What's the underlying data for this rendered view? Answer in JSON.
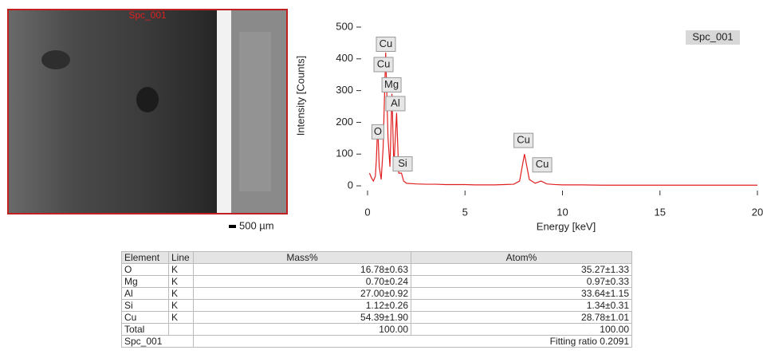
{
  "image": {
    "label": "Spc_001",
    "scale_bar": "500 µm"
  },
  "chart_data": {
    "type": "line",
    "x": [
      0.1,
      0.2,
      0.3,
      0.4,
      0.45,
      0.52,
      0.6,
      0.7,
      0.8,
      0.93,
      1.05,
      1.15,
      1.25,
      1.35,
      1.49,
      1.6,
      1.74,
      1.85,
      2.0,
      2.5,
      3,
      3.5,
      4,
      4.5,
      5,
      5.5,
      6,
      6.5,
      7,
      7.5,
      7.8,
      8.05,
      8.3,
      8.6,
      8.9,
      9.2,
      9.6,
      10,
      11,
      12,
      13,
      14,
      15,
      16,
      17,
      18,
      19,
      20
    ],
    "series": [
      {
        "name": "Spc_001",
        "color": "#e02020",
        "values": [
          40,
          25,
          15,
          30,
          80,
          190,
          60,
          20,
          120,
          420,
          150,
          60,
          290,
          60,
          230,
          40,
          40,
          15,
          8,
          6,
          5,
          5,
          4,
          4,
          4,
          3,
          3,
          3,
          4,
          5,
          15,
          100,
          20,
          8,
          15,
          6,
          4,
          3,
          3,
          2,
          2,
          2,
          2,
          2,
          2,
          2,
          2,
          2
        ]
      }
    ],
    "xlabel": "Energy [keV]",
    "ylabel": "Intensity [Counts]",
    "xlim": [
      0,
      20
    ],
    "ylim": [
      -30,
      510
    ],
    "xticks": [
      0,
      5,
      10,
      15,
      20
    ],
    "yticks": [
      0,
      100,
      200,
      300,
      400,
      500
    ],
    "legend": "upper right",
    "annotations": [
      {
        "text": "Cu",
        "x": 0.94,
        "y": 446
      },
      {
        "text": "Cu",
        "x": 0.82,
        "y": 382
      },
      {
        "text": "Mg",
        "x": 1.23,
        "y": 318
      },
      {
        "text": "Al",
        "x": 1.43,
        "y": 259
      },
      {
        "text": "O",
        "x": 0.53,
        "y": 170
      },
      {
        "text": "Si",
        "x": 1.8,
        "y": 69
      },
      {
        "text": "Cu",
        "x": 8.0,
        "y": 143
      },
      {
        "text": "Cu",
        "x": 8.96,
        "y": 66
      }
    ]
  },
  "table": {
    "header": [
      "Element",
      "Line",
      "Mass%",
      "Atom%"
    ],
    "rows": [
      [
        "O",
        "K",
        "16.78±0.63",
        "35.27±1.33"
      ],
      [
        "Mg",
        "K",
        "0.70±0.24",
        "0.97±0.33"
      ],
      [
        "Al",
        "K",
        "27.00±0.92",
        "33.64±1.15"
      ],
      [
        "Si",
        "K",
        "1.12±0.26",
        "1.34±0.31"
      ],
      [
        "Cu",
        "K",
        "54.39±1.90",
        "28.78±1.01"
      ],
      [
        "Total",
        "",
        "100.00",
        "100.00"
      ]
    ],
    "footer": [
      "Spc_001",
      "Fitting ratio 0.2091"
    ]
  }
}
